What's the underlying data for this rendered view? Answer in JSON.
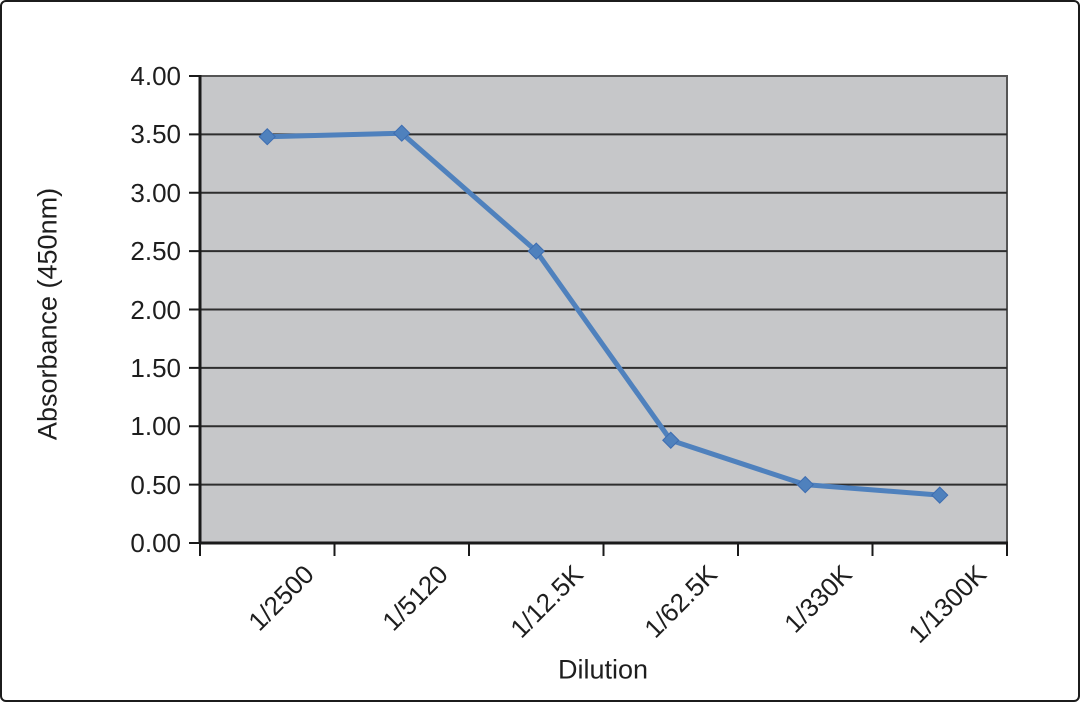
{
  "chart_data": {
    "type": "line",
    "title": "",
    "xlabel": "Dilution",
    "ylabel": "Absorbance (450nm)",
    "categories": [
      "1/2500",
      "1/5120",
      "1/12.5K",
      "1/62.5K",
      "1/330K",
      "1/1300K"
    ],
    "values": [
      3.48,
      3.51,
      2.5,
      0.88,
      0.5,
      0.41
    ],
    "ylim": [
      0.0,
      4.0
    ],
    "ytick_step": 0.5,
    "ytick_labels": [
      "0.00",
      "0.50",
      "1.00",
      "1.50",
      "2.00",
      "2.50",
      "3.00",
      "3.50",
      "4.00"
    ],
    "grid": "horizontal",
    "legend": "none",
    "line_color": "#4f81bd",
    "marker": "diamond",
    "plot_bg": "#c6c7c9",
    "gridline_color": "#2e2e2e",
    "axis_color": "#1a1a1a",
    "text_color": "#1e1e1e"
  }
}
